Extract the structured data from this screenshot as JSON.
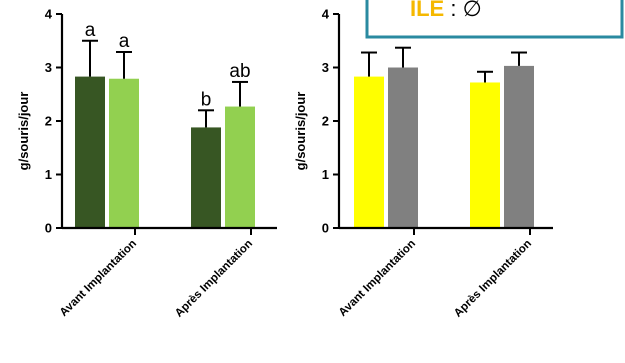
{
  "legend_fragment": {
    "key_text": "ILE",
    "separator": " : ",
    "symbol": "∅",
    "key_color": "#f5b800",
    "border_color": "#2a8aa0"
  },
  "chart_data": [
    {
      "type": "bar",
      "ylabel": "g/souris/jour",
      "ylim": [
        0,
        4
      ],
      "yticks": [
        0,
        1,
        2,
        3,
        4
      ],
      "categories": [
        "Avant Implantation",
        "Après Implantation"
      ],
      "series": [
        {
          "values": [
            2.83,
            1.88
          ],
          "errors": [
            0.67,
            0.32
          ],
          "color": "#375623",
          "labels": [
            "a",
            "b"
          ]
        },
        {
          "values": [
            2.79,
            2.27
          ],
          "errors": [
            0.5,
            0.46
          ],
          "color": "#92d050",
          "labels": [
            "a",
            "ab"
          ]
        }
      ]
    },
    {
      "type": "bar",
      "ylabel": "g/souris/jour",
      "ylim": [
        0,
        4
      ],
      "yticks": [
        0,
        1,
        2,
        3,
        4
      ],
      "categories": [
        "Avant Implantation",
        "Après Implantation"
      ],
      "series": [
        {
          "values": [
            2.83,
            2.72
          ],
          "errors": [
            0.45,
            0.2
          ],
          "color": "#ffff00",
          "labels": [
            "",
            ""
          ]
        },
        {
          "values": [
            3.0,
            3.03
          ],
          "errors": [
            0.37,
            0.25
          ],
          "color": "#808080",
          "labels": [
            "",
            ""
          ]
        }
      ]
    }
  ]
}
